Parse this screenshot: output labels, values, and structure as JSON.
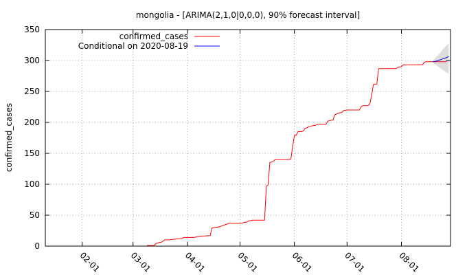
{
  "chart_data": {
    "type": "line",
    "title": "mongolia -  [ARIMA(2,1,0|0,0,0), 90% forecast interval]",
    "xlabel": "",
    "ylabel": "confirmed_cases",
    "ylim": [
      0,
      350
    ],
    "xlim": [
      "2020-01-11",
      "2020-08-29"
    ],
    "yticks": [
      0,
      50,
      100,
      150,
      200,
      250,
      300,
      350
    ],
    "xticks": [
      {
        "label": "02-01",
        "date": "2020-02-01"
      },
      {
        "label": "03-01",
        "date": "2020-03-01"
      },
      {
        "label": "04-01",
        "date": "2020-04-01"
      },
      {
        "label": "05-01",
        "date": "2020-05-01"
      },
      {
        "label": "06-01",
        "date": "2020-06-01"
      },
      {
        "label": "07-01",
        "date": "2020-07-01"
      },
      {
        "label": "08-01",
        "date": "2020-08-01"
      }
    ],
    "grid": true,
    "legend_position": "top-left",
    "series": [
      {
        "name": "confirmed_cases",
        "color": "#ff0000",
        "points": [
          [
            "2020-03-09",
            1
          ],
          [
            "2020-03-13",
            1
          ],
          [
            "2020-03-14",
            4
          ],
          [
            "2020-03-16",
            6
          ],
          [
            "2020-03-17",
            6
          ],
          [
            "2020-03-18",
            8
          ],
          [
            "2020-03-19",
            10
          ],
          [
            "2020-03-21",
            10
          ],
          [
            "2020-03-24",
            11
          ],
          [
            "2020-03-27",
            12
          ],
          [
            "2020-03-29",
            12
          ],
          [
            "2020-03-30",
            14
          ],
          [
            "2020-04-05",
            14
          ],
          [
            "2020-04-06",
            15
          ],
          [
            "2020-04-08",
            16
          ],
          [
            "2020-04-14",
            17
          ],
          [
            "2020-04-15",
            29
          ],
          [
            "2020-04-16",
            30
          ],
          [
            "2020-04-19",
            31
          ],
          [
            "2020-04-20",
            32
          ],
          [
            "2020-04-22",
            34
          ],
          [
            "2020-04-24",
            36
          ],
          [
            "2020-04-25",
            37
          ],
          [
            "2020-05-02",
            37
          ],
          [
            "2020-05-03",
            38
          ],
          [
            "2020-05-05",
            39
          ],
          [
            "2020-05-06",
            41
          ],
          [
            "2020-05-07",
            41
          ],
          [
            "2020-05-08",
            42
          ],
          [
            "2020-05-15",
            42
          ],
          [
            "2020-05-16",
            97
          ],
          [
            "2020-05-17",
            99
          ],
          [
            "2020-05-18",
            135
          ],
          [
            "2020-05-19",
            136
          ],
          [
            "2020-05-20",
            137
          ],
          [
            "2020-05-21",
            140
          ],
          [
            "2020-05-29",
            140
          ],
          [
            "2020-05-30",
            141
          ],
          [
            "2020-05-31",
            161
          ],
          [
            "2020-06-01",
            179
          ],
          [
            "2020-06-02",
            179
          ],
          [
            "2020-06-03",
            185
          ],
          [
            "2020-06-05",
            185
          ],
          [
            "2020-06-06",
            186
          ],
          [
            "2020-06-07",
            190
          ],
          [
            "2020-06-08",
            191
          ],
          [
            "2020-06-09",
            193
          ],
          [
            "2020-06-12",
            195
          ],
          [
            "2020-06-13",
            195
          ],
          [
            "2020-06-14",
            197
          ],
          [
            "2020-06-19",
            197
          ],
          [
            "2020-06-20",
            202
          ],
          [
            "2020-06-23",
            204
          ],
          [
            "2020-06-24",
            212
          ],
          [
            "2020-06-26",
            215
          ],
          [
            "2020-06-28",
            216
          ],
          [
            "2020-06-29",
            219
          ],
          [
            "2020-07-01",
            220
          ],
          [
            "2020-07-08",
            220
          ],
          [
            "2020-07-09",
            225
          ],
          [
            "2020-07-10",
            227
          ],
          [
            "2020-07-13",
            227
          ],
          [
            "2020-07-14",
            230
          ],
          [
            "2020-07-15",
            243
          ],
          [
            "2020-07-16",
            261
          ],
          [
            "2020-07-18",
            262
          ],
          [
            "2020-07-19",
            287
          ],
          [
            "2020-07-29",
            287
          ],
          [
            "2020-07-30",
            289
          ],
          [
            "2020-08-01",
            290
          ],
          [
            "2020-08-02",
            293
          ],
          [
            "2020-08-13",
            293
          ],
          [
            "2020-08-14",
            297
          ],
          [
            "2020-08-15",
            298
          ],
          [
            "2020-08-18",
            298
          ],
          [
            "2020-08-19",
            298
          ],
          [
            "2020-08-26",
            298
          ],
          [
            "2020-08-27",
            300
          ]
        ]
      },
      {
        "name": "Conditional on 2020-08-19",
        "color": "#0000ff",
        "points": [
          [
            "2020-08-19",
            298
          ],
          [
            "2020-08-20",
            298.5
          ],
          [
            "2020-08-21",
            299.2
          ],
          [
            "2020-08-22",
            300
          ],
          [
            "2020-08-23",
            301
          ],
          [
            "2020-08-24",
            302
          ],
          [
            "2020-08-25",
            303
          ],
          [
            "2020-08-26",
            304
          ],
          [
            "2020-08-27",
            305
          ],
          [
            "2020-08-28",
            306.5
          ]
        ]
      }
    ],
    "forecast_interval": {
      "color": "#dddddd",
      "points": [
        [
          "2020-08-19",
          297,
          299
        ],
        [
          "2020-08-20",
          294,
          303
        ],
        [
          "2020-08-21",
          292,
          306
        ],
        [
          "2020-08-22",
          290,
          309
        ],
        [
          "2020-08-23",
          288,
          312
        ],
        [
          "2020-08-24",
          286,
          316
        ],
        [
          "2020-08-25",
          284,
          319
        ],
        [
          "2020-08-26",
          282,
          322
        ],
        [
          "2020-08-27",
          280,
          325
        ],
        [
          "2020-08-28",
          278,
          328
        ]
      ]
    }
  }
}
